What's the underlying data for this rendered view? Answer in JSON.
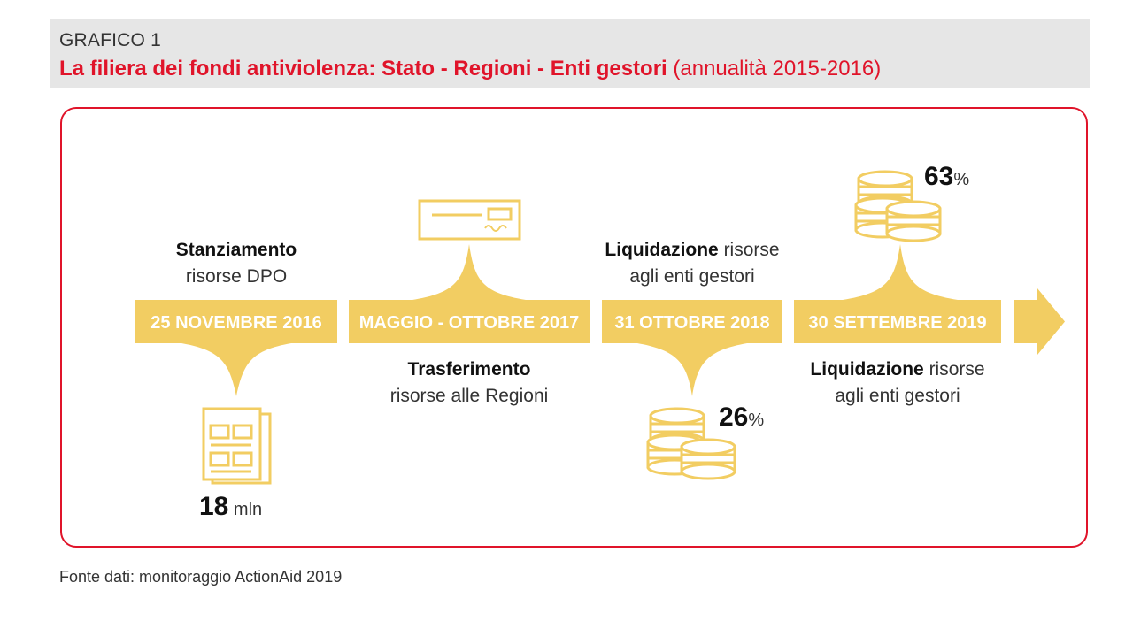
{
  "header": {
    "kicker": "GRAFICO 1",
    "title": "La filiera dei fondi antiviolenza: Stato - Regioni - Enti gestori",
    "years": "(annualità 2015-2016)"
  },
  "colors": {
    "accent_red": "#e0142a",
    "gold": "#f2cd62",
    "header_bg": "#e6e6e6"
  },
  "timeline": {
    "dates": [
      "25 NOVEMBRE 2016",
      "MAGGIO - OTTOBRE 2017",
      "31 OTTOBRE 2018",
      "30 SETTEMBRE 2019"
    ]
  },
  "steps": [
    {
      "strong": "Stanziamento",
      "rest": "",
      "line2": "risorse DPO"
    },
    {
      "strong": "Trasferimento",
      "rest": "",
      "line2": "risorse alle Regioni"
    },
    {
      "strong": "Liquidazione",
      "rest": " risorse",
      "line2": "agli enti gestori"
    },
    {
      "strong": "Liquidazione",
      "rest": " risorse",
      "line2": "agli enti gestori"
    }
  ],
  "values": [
    {
      "number": "18",
      "unit": " mln",
      "icon": "newspaper-icon"
    },
    {
      "number": "",
      "unit": "",
      "icon": "cheque-icon"
    },
    {
      "number": "26",
      "unit": "%",
      "icon": "coins-icon"
    },
    {
      "number": "63",
      "unit": "%",
      "icon": "coins-icon"
    }
  ],
  "source": "Fonte dati: monitoraggio ActionAid 2019"
}
